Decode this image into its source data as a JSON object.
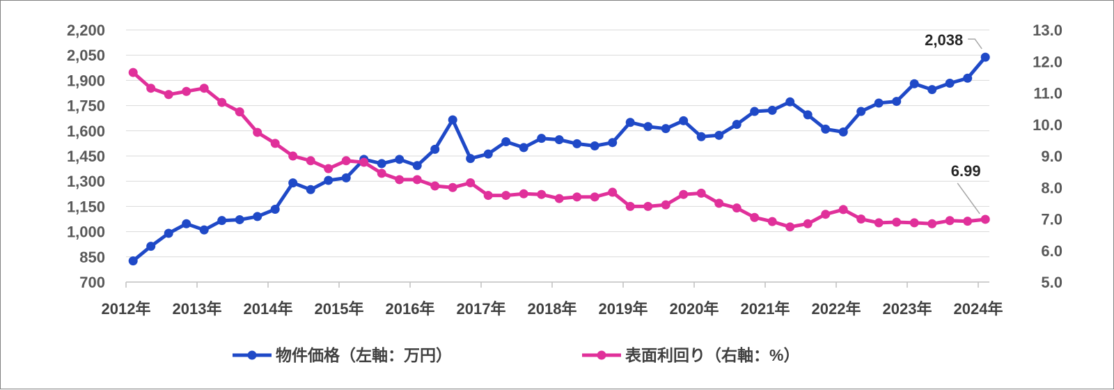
{
  "chart_data": {
    "type": "line",
    "title": "",
    "xlabel": "",
    "ylabel_left": "",
    "ylabel_right": "",
    "x_tick_labels": [
      "2012年",
      "2013年",
      "2014年",
      "2015年",
      "2016年",
      "2017年",
      "2018年",
      "2019年",
      "2020年",
      "2021年",
      "2022年",
      "2023年",
      "2024年"
    ],
    "x_range": [
      2012.0,
      2024.25
    ],
    "y_left": {
      "ylim": [
        700,
        2200
      ],
      "ticks": [
        700,
        850,
        1000,
        1150,
        1300,
        1450,
        1600,
        1750,
        1900,
        2050,
        2200
      ],
      "tick_labels": [
        "700",
        "850",
        "1,000",
        "1,150",
        "1,300",
        "1,450",
        "1,600",
        "1,750",
        "1,900",
        "2,050",
        "2,200"
      ]
    },
    "y_right": {
      "ylim": [
        5.0,
        13.0
      ],
      "ticks": [
        5,
        6,
        7,
        8,
        9,
        10,
        11,
        12,
        13
      ],
      "tick_labels": [
        "5.0",
        "6.0",
        "7.0",
        "8.0",
        "9.0",
        "10.0",
        "11.0",
        "12.0",
        "13.0"
      ]
    },
    "grid": true,
    "legend_position": "bottom",
    "x": [
      2012.1,
      2012.35,
      2012.6,
      2012.85,
      2013.1,
      2013.35,
      2013.6,
      2013.85,
      2014.1,
      2014.35,
      2014.6,
      2014.85,
      2015.1,
      2015.35,
      2015.6,
      2015.85,
      2016.1,
      2016.35,
      2016.6,
      2016.85,
      2017.1,
      2017.35,
      2017.6,
      2017.85,
      2018.1,
      2018.35,
      2018.6,
      2018.85,
      2019.1,
      2019.35,
      2019.6,
      2019.85,
      2020.1,
      2020.35,
      2020.6,
      2020.85,
      2021.1,
      2021.35,
      2021.6,
      2021.85,
      2022.1,
      2022.35,
      2022.6,
      2022.85,
      2023.1,
      2023.35,
      2023.6,
      2023.85,
      2024.1
    ],
    "series": [
      {
        "name": "物件価格（左軸：万円）",
        "axis": "left",
        "color": "#1f49c7",
        "values": [
          826,
          913,
          990,
          1047,
          1010,
          1066,
          1071,
          1090,
          1133,
          1290,
          1250,
          1305,
          1320,
          1430,
          1405,
          1430,
          1393,
          1490,
          1665,
          1435,
          1462,
          1535,
          1500,
          1555,
          1547,
          1523,
          1510,
          1530,
          1650,
          1625,
          1613,
          1660,
          1565,
          1573,
          1638,
          1715,
          1722,
          1772,
          1695,
          1610,
          1593,
          1715,
          1765,
          1775,
          1880,
          1845,
          1883,
          1913,
          2038
        ]
      },
      {
        "name": "表面利回り（右軸：%）",
        "axis": "right",
        "color": "#e0309a",
        "values": [
          11.65,
          11.15,
          10.95,
          11.05,
          11.15,
          10.7,
          10.4,
          9.75,
          9.4,
          9.0,
          8.85,
          8.6,
          8.85,
          8.8,
          8.45,
          8.25,
          8.25,
          8.05,
          8.0,
          8.15,
          7.75,
          7.75,
          7.8,
          7.78,
          7.65,
          7.7,
          7.7,
          7.85,
          7.4,
          7.4,
          7.45,
          7.78,
          7.82,
          7.5,
          7.35,
          7.05,
          6.92,
          6.75,
          6.85,
          7.15,
          7.3,
          7.0,
          6.88,
          6.9,
          6.88,
          6.85,
          6.95,
          6.93,
          6.99
        ]
      }
    ],
    "annotations": [
      {
        "series": 0,
        "point_index": 48,
        "text": "2,038"
      },
      {
        "series": 1,
        "point_index": 48,
        "text": "6.99"
      }
    ]
  }
}
